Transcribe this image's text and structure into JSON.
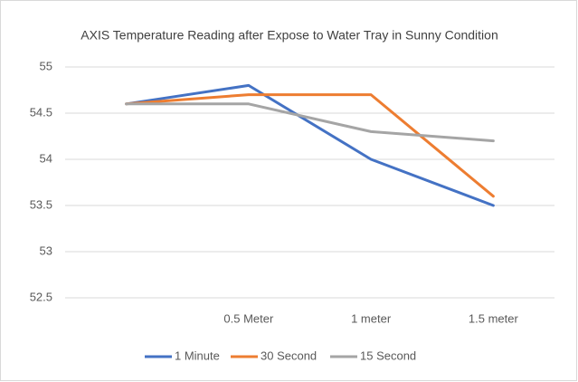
{
  "chart_data": {
    "type": "line",
    "title": "AXIS Temperature Reading after Expose to Water Tray in Sunny Condition",
    "categories": [
      null,
      "0.5 Meter",
      "1 meter",
      "1.5 meter"
    ],
    "series": [
      {
        "name": "1 Minute",
        "color": "#4472c4",
        "values": [
          54.6,
          54.8,
          54.0,
          53.5
        ]
      },
      {
        "name": "30 Second",
        "color": "#ed7d31",
        "values": [
          54.6,
          54.7,
          54.7,
          53.6
        ]
      },
      {
        "name": "15 Second",
        "color": "#a5a5a5",
        "values": [
          54.6,
          54.6,
          54.3,
          54.2
        ]
      }
    ],
    "ylim": [
      52.5,
      55
    ],
    "yticks": [
      52.5,
      53,
      53.5,
      54,
      54.5,
      55
    ],
    "grid": true,
    "legend": "bottom"
  }
}
